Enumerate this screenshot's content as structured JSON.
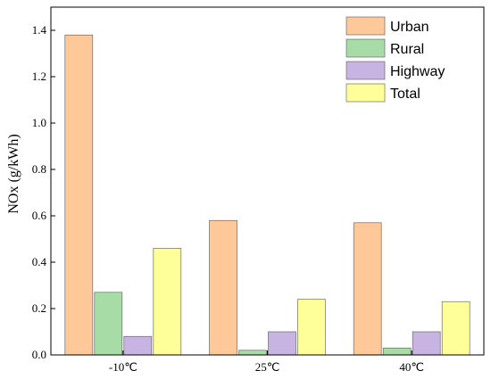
{
  "chart_data": {
    "type": "bar",
    "title": "",
    "xlabel": "",
    "ylabel": "NOx (g/kWh)",
    "categories": [
      "-10℃",
      "25℃",
      "40℃"
    ],
    "ylim": [
      0,
      1.5
    ],
    "yticks": [
      "0.0",
      "0.2",
      "0.4",
      "0.6",
      "0.8",
      "1.0",
      "1.2",
      "1.4"
    ],
    "grid": false,
    "legend_position": "top-right",
    "series": [
      {
        "name": "Urban",
        "color": "#FFC899",
        "values": [
          1.38,
          0.58,
          0.57
        ]
      },
      {
        "name": "Rural",
        "color": "#A7DCA7",
        "values": [
          0.27,
          0.02,
          0.03
        ]
      },
      {
        "name": "Highway",
        "color": "#C8B4E2",
        "values": [
          0.08,
          0.1,
          0.1
        ]
      },
      {
        "name": "Total",
        "color": "#FFFF99",
        "values": [
          0.46,
          0.24,
          0.23
        ]
      }
    ]
  }
}
